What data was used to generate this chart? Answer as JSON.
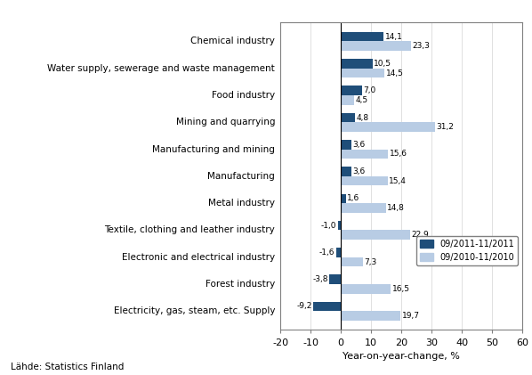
{
  "categories": [
    "Chemical industry",
    "Water supply, sewerage and waste management",
    "Food industry",
    "Mining and quarrying",
    "Manufacturing and mining",
    "Manufacturing",
    "Metal industry",
    "Textile, clothing and leather industry",
    "Electronic and electrical industry",
    "Forest industry",
    "Electricity, gas, steam, etc. Supply"
  ],
  "values_2011": [
    14.1,
    10.5,
    7.0,
    4.8,
    3.6,
    3.6,
    1.6,
    -1.0,
    -1.6,
    -3.8,
    -9.2
  ],
  "values_2010": [
    23.3,
    14.5,
    4.5,
    31.2,
    15.6,
    15.4,
    14.8,
    22.9,
    7.3,
    16.5,
    19.7
  ],
  "labels_2011": [
    "14,1",
    "10,5",
    "7,0",
    "4,8",
    "3,6",
    "3,6",
    "1,6",
    "-1,0",
    "-1,6",
    "-3,8",
    "-9,2"
  ],
  "labels_2010": [
    "23,3",
    "14,5",
    "4,5",
    "31,2",
    "15,6",
    "15,4",
    "14,8",
    "22,9",
    "7,3",
    "16,5",
    "19,7"
  ],
  "color_2011": "#1F4E79",
  "color_2010": "#B8CCE4",
  "xlim": [
    -20,
    60
  ],
  "xticks": [
    -20,
    -10,
    0,
    10,
    20,
    30,
    40,
    50,
    60
  ],
  "xlabel": "Year-on-year-change, %",
  "legend_2011": "09/2011-11/2011",
  "legend_2010": "09/2010-11/2010",
  "footnote": "Lähde: Statistics Finland",
  "bar_height": 0.35
}
